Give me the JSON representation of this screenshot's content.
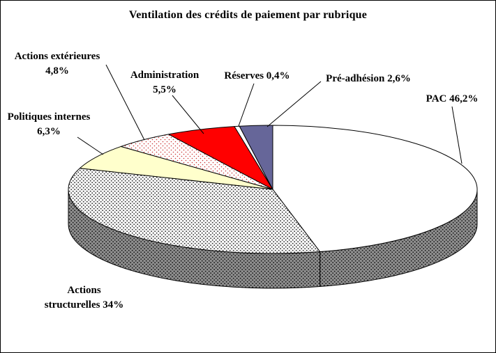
{
  "title": "Ventilation des crédits de paiement par rubrique",
  "chart_data": {
    "type": "pie",
    "style": "3d",
    "title": "Ventilation des crédits de paiement par rubrique",
    "unit": "%",
    "direction": "clockwise",
    "start_angle_deg": 0,
    "slices": [
      {
        "key": "pac",
        "name": "PAC",
        "value": 46.2,
        "display": "PAC 46,2%",
        "fill": "#FFFFFF"
      },
      {
        "key": "structurelles",
        "name": "Actions structurelles",
        "value": 34,
        "display": "Actions structurelles 34%",
        "fill": "pattern:dots-gray"
      },
      {
        "key": "politiques",
        "name": "Politiques internes",
        "value": 6.3,
        "display": "Politiques internes 6,3%",
        "fill": "#FFFFCC"
      },
      {
        "key": "exterieures",
        "name": "Actions extérieures",
        "value": 4.8,
        "display": "Actions extérieures 4,8%",
        "fill": "pattern:dots-red"
      },
      {
        "key": "administration",
        "name": "Administration",
        "value": 5.5,
        "display": "Administration 5,5%",
        "fill": "#FF0000"
      },
      {
        "key": "reserves",
        "name": "Réserves",
        "value": 0.4,
        "display": "Réserves 0,4%",
        "fill": "#FFFFFF"
      },
      {
        "key": "preadhesion",
        "name": "Pré-adhésion",
        "value": 2.6,
        "display": "Pré-adhésion 2,6%",
        "fill": "#666699"
      }
    ],
    "label_texts": {
      "exterieures": "Actions extérieures\n4,8%",
      "administration": "Administration\n5,5%",
      "reserves": "Réserves 0,4%",
      "preadhesion": "Pré-adhésion 2,6%",
      "pac": "PAC 46,2%",
      "politiques": "Politiques internes\n6,3%",
      "structurelles": "Actions\nstructurelles 34%"
    },
    "colors": {
      "administration_red": "#FF0000",
      "preadhesion_blue": "#666699",
      "politiques_cream": "#FFFFCC",
      "pac_white": "#FFFFFF",
      "rim_gray": "#8F8F8F"
    }
  }
}
